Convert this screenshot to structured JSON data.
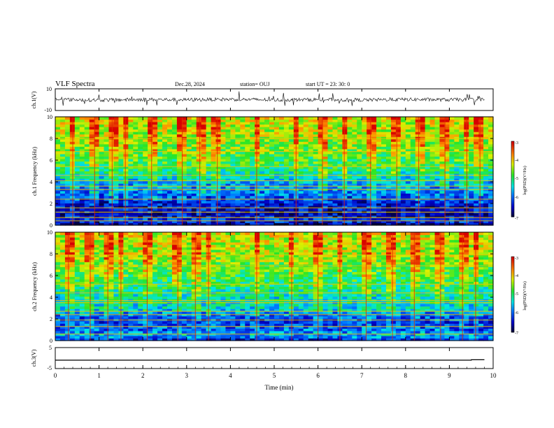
{
  "header": {
    "title": "VLF Spectra",
    "date": "Dec.28, 2024",
    "station": "station= OUJ",
    "start": "start  UT  =   23: 30: 0"
  },
  "chart_data": [
    {
      "type": "line",
      "id": "ch1-waveform",
      "ylabel": "ch.1(V)",
      "ylim": [
        -10,
        10
      ],
      "yticks": [
        10,
        -10
      ],
      "xlim": [
        0,
        10
      ],
      "series": [
        {
          "values": [
            {
              "x": 0.0,
              "y": 0.3
            },
            {
              "x": 1.0,
              "y": -0.4
            },
            {
              "x": 2.0,
              "y": 0.2
            },
            {
              "x": 3.0,
              "y": -0.1
            },
            {
              "x": 4.0,
              "y": 0.3
            },
            {
              "x": 5.0,
              "y": -0.2
            },
            {
              "x": 6.0,
              "y": 0.1
            },
            {
              "x": 7.0,
              "y": -0.3
            },
            {
              "x": 8.0,
              "y": 0.2
            },
            {
              "x": 9.0,
              "y": -0.1
            },
            {
              "x": 9.8,
              "y": 0.2
            }
          ]
        }
      ]
    },
    {
      "type": "heatmap",
      "id": "ch1-spectrogram",
      "ylabel": "ch.1 Frequency (kHz)",
      "ylim": [
        0,
        10
      ],
      "yticks": [
        "0",
        "2",
        "4",
        "6",
        "8",
        "10"
      ],
      "xlim": [
        0,
        10
      ],
      "colorbar": {
        "label": "log(PSD)(V²/Hz)",
        "range": [
          -7,
          -3
        ],
        "ticks": [
          "-3",
          "-4",
          "-5",
          "-6",
          "-7"
        ]
      },
      "background_levels_by_freq": [
        {
          "f": 0.0,
          "level": -6.8
        },
        {
          "f": 0.5,
          "level": -6.2
        },
        {
          "f": 1.0,
          "level": -6.6
        },
        {
          "f": 2.0,
          "level": -6.4
        },
        {
          "f": 3.0,
          "level": -5.9
        },
        {
          "f": 4.0,
          "level": -5.6
        },
        {
          "f": 5.0,
          "level": -5.1
        },
        {
          "f": 6.0,
          "level": -4.8
        },
        {
          "f": 7.0,
          "level": -4.6
        },
        {
          "f": 8.0,
          "level": -4.4
        },
        {
          "f": 10.0,
          "level": -4.2
        }
      ],
      "horizontal_lines_khz": [
        0.4,
        0.7,
        1.2,
        1.6,
        2.4,
        3.3,
        3.6,
        4.1,
        4.6,
        5.4,
        6.8,
        8.0
      ],
      "impulsive_events_min": [
        0.4,
        0.9,
        1.3,
        1.6,
        2.2,
        2.9,
        3.3,
        3.7,
        4.6,
        5.5,
        6.1,
        6.6,
        7.2,
        7.8,
        8.3,
        8.9,
        9.4,
        9.7
      ]
    },
    {
      "type": "heatmap",
      "id": "ch2-spectrogram",
      "ylabel": "ch.2 Frequency (kHz)",
      "ylim": [
        0,
        10
      ],
      "yticks": [
        "0",
        "2",
        "4",
        "6",
        "8",
        "10"
      ],
      "xlim": [
        0,
        10
      ],
      "colorbar": {
        "label": "log(PSD)(V²/Hz)",
        "range": [
          -7,
          -3
        ],
        "ticks": [
          "-3",
          "-4",
          "-5",
          "-6",
          "-7"
        ]
      },
      "background_levels_by_freq": [
        {
          "f": 0.0,
          "level": -6.5
        },
        {
          "f": 0.5,
          "level": -5.6
        },
        {
          "f": 1.0,
          "level": -6.0
        },
        {
          "f": 2.0,
          "level": -6.2
        },
        {
          "f": 3.0,
          "level": -5.4
        },
        {
          "f": 4.0,
          "level": -5.3
        },
        {
          "f": 5.0,
          "level": -5.0
        },
        {
          "f": 6.0,
          "level": -4.8
        },
        {
          "f": 7.0,
          "level": -4.6
        },
        {
          "f": 8.0,
          "level": -4.4
        },
        {
          "f": 10.0,
          "level": -4.2
        }
      ],
      "horizontal_lines_khz": [
        0.6,
        1.3,
        1.9,
        2.4,
        2.7,
        3.5,
        3.7,
        4.4,
        5.2,
        6.9,
        7.9
      ],
      "impulsive_events_min": [
        0.3,
        0.8,
        1.2,
        1.5,
        2.1,
        2.8,
        3.2,
        3.5,
        4.6,
        5.4,
        6.0,
        6.5,
        7.1,
        7.7,
        8.2,
        8.8,
        9.3,
        9.6
      ]
    },
    {
      "type": "line",
      "id": "ch3-signal",
      "ylabel": "ch.3(V)",
      "ylim": [
        -5,
        5
      ],
      "yticks": [
        "5",
        "-5"
      ],
      "xlim": [
        0,
        10
      ],
      "xlabel": "Time  (min)",
      "xticks": [
        "0",
        "1",
        "2",
        "3",
        "4",
        "5",
        "6",
        "7",
        "8",
        "9",
        "10"
      ],
      "series": [
        {
          "values": [
            {
              "x": 0.0,
              "y": -1.0
            },
            {
              "x": 9.5,
              "y": -1.0
            },
            {
              "x": 9.5,
              "y": -0.8
            },
            {
              "x": 9.8,
              "y": -0.8
            }
          ]
        }
      ]
    }
  ]
}
